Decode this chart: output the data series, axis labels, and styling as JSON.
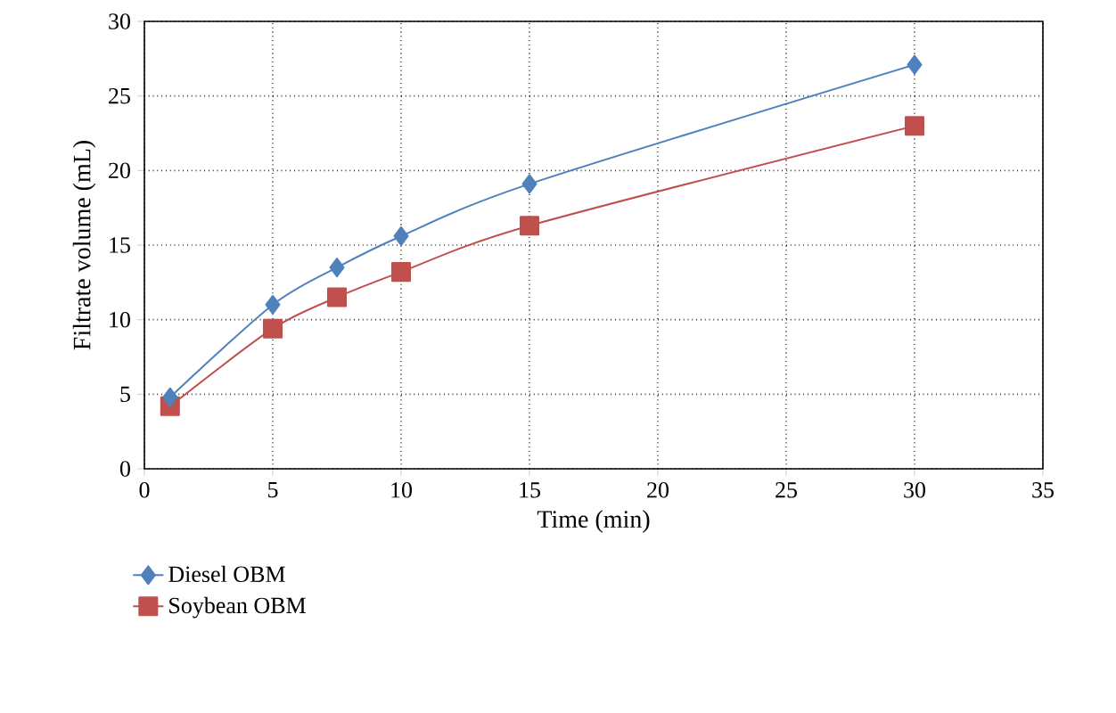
{
  "chart_data": {
    "type": "line",
    "xlabel": "Time (min)",
    "ylabel": "Filtrate volume (mL)",
    "x": [
      1,
      5,
      7.5,
      10,
      15,
      30
    ],
    "series": [
      {
        "name": "Diesel OBM",
        "color": "#4f81bd",
        "marker": "diamond",
        "values": [
          4.8,
          11.0,
          13.5,
          15.6,
          19.1,
          27.1
        ]
      },
      {
        "name": "Soybean OBM",
        "color": "#c0504d",
        "marker": "square",
        "values": [
          4.2,
          9.4,
          11.5,
          13.2,
          16.3,
          23.0
        ]
      }
    ],
    "xlim": [
      0,
      35
    ],
    "xticks": [
      0,
      5,
      10,
      15,
      20,
      25,
      30,
      35
    ],
    "ylim": [
      0,
      30
    ],
    "yticks": [
      0,
      5,
      10,
      15,
      20,
      25,
      30
    ],
    "grid": true,
    "legend": "bottom left",
    "line_style": "solid"
  }
}
